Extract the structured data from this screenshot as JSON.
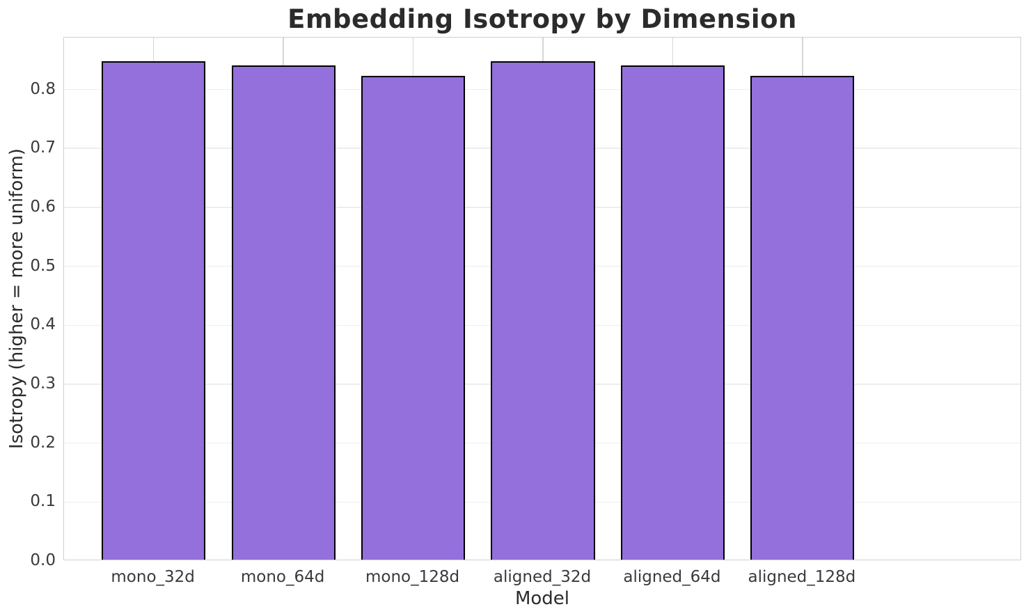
{
  "chart_data": {
    "type": "bar",
    "title": "Embedding Isotropy by Dimension",
    "xlabel": "Model",
    "ylabel": "Isotropy (higher = more uniform)",
    "categories": [
      "mono_32d",
      "mono_64d",
      "mono_128d",
      "aligned_32d",
      "aligned_64d",
      "aligned_128d"
    ],
    "values": [
      0.845,
      0.838,
      0.821,
      0.845,
      0.838,
      0.821
    ],
    "yticks": [
      0.0,
      0.1,
      0.2,
      0.3,
      0.4,
      0.5,
      0.6,
      0.7,
      0.8
    ],
    "ytick_labels": [
      "0.0",
      "0.1",
      "0.2",
      "0.3",
      "0.4",
      "0.5",
      "0.6",
      "0.7",
      "0.8"
    ],
    "ylim": [
      0,
      0.888
    ],
    "grid": true,
    "legend": "none",
    "colors": {
      "bar_fill": "#9370DB",
      "bar_edge": "#000000",
      "grid_horizontal": "#ededed",
      "grid_vertical": "#d6d6d6",
      "spine": "#cfcfcf",
      "text": "#2b2b2b",
      "tick_text": "#3a3a3a",
      "background": "#ffffff"
    }
  }
}
